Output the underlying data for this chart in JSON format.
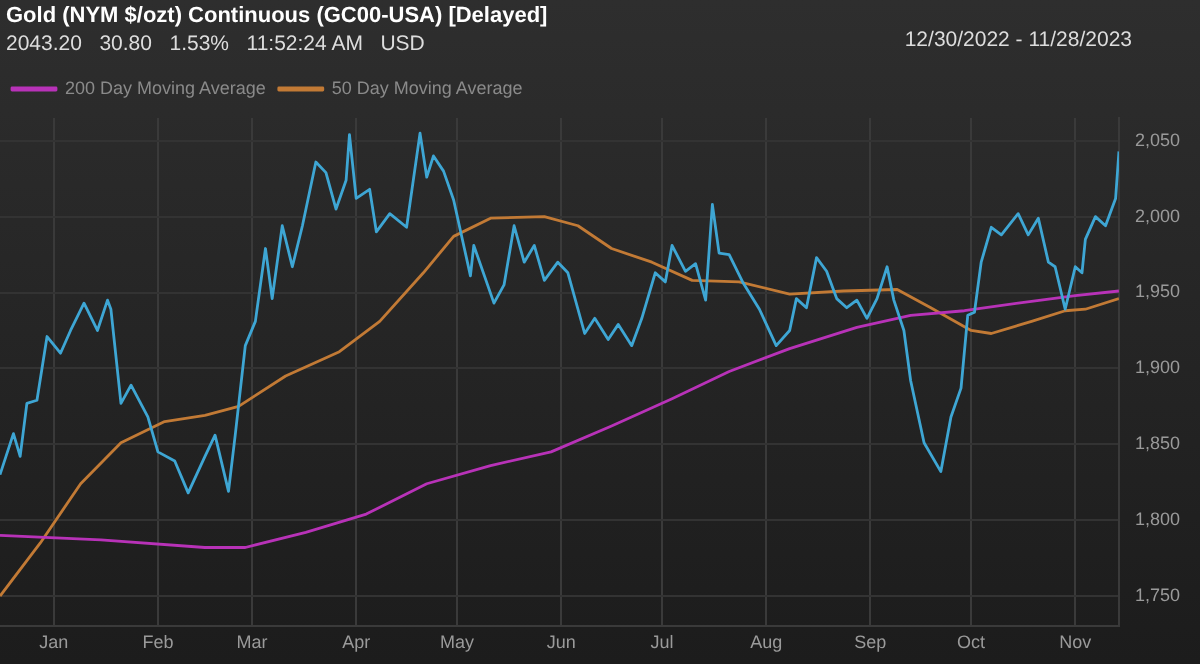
{
  "chart_data": {
    "type": "line",
    "title": "Gold (NYM $/ozt) Continuous (GC00-USA) [Delayed]",
    "subtitle": "2043.20   30.80   1.53%   11:52:24 AM   USD",
    "annotations": [
      "12/30/2022 - 11/28/2023"
    ],
    "legend": "top left",
    "grid": true,
    "marker": "none",
    "line_style": "solid",
    "xlim": [
      "2022-12-30",
      "2023-11-28"
    ],
    "xticks": [
      {
        "value": "2023-01-15",
        "label": "Jan"
      },
      {
        "value": "2023-02-15",
        "label": "Feb"
      },
      {
        "value": "2023-03-15",
        "label": "Mar"
      },
      {
        "value": "2023-04-15",
        "label": "Apr"
      },
      {
        "value": "2023-05-15",
        "label": "May"
      },
      {
        "value": "2023-06-15",
        "label": "Jun"
      },
      {
        "value": "2023-07-15",
        "label": "Jul"
      },
      {
        "value": "2023-08-15",
        "label": "Aug"
      },
      {
        "value": "2023-09-15",
        "label": "Sep"
      },
      {
        "value": "2023-10-15",
        "label": "Oct"
      },
      {
        "value": "2023-11-15",
        "label": "Nov"
      }
    ],
    "ylim": [
      1730,
      2065
    ],
    "yticks": [
      {
        "value": 1750,
        "label": "1,750"
      },
      {
        "value": 1800,
        "label": "1,800"
      },
      {
        "value": 1850,
        "label": "1,850"
      },
      {
        "value": 1900,
        "label": "1,900"
      },
      {
        "value": 1950,
        "label": "1,950"
      },
      {
        "value": 2000,
        "label": "2,000"
      },
      {
        "value": 2050,
        "label": "2,050"
      }
    ],
    "series": [
      {
        "color": "#3ea6d4",
        "x": [
          "2022-12-30",
          "2023-01-03",
          "2023-01-05",
          "2023-01-07",
          "2023-01-10",
          "2023-01-13",
          "2023-01-17",
          "2023-01-20",
          "2023-01-24",
          "2023-01-28",
          "2023-01-31",
          "2023-02-01",
          "2023-02-04",
          "2023-02-07",
          "2023-02-12",
          "2023-02-15",
          "2023-02-20",
          "2023-02-24",
          "2023-03-01",
          "2023-03-04",
          "2023-03-08",
          "2023-03-10",
          "2023-03-13",
          "2023-03-16",
          "2023-03-19",
          "2023-03-21",
          "2023-03-24",
          "2023-03-27",
          "2023-03-30",
          "2023-04-03",
          "2023-04-06",
          "2023-04-09",
          "2023-04-12",
          "2023-04-13",
          "2023-04-15",
          "2023-04-19",
          "2023-04-21",
          "2023-04-25",
          "2023-04-30",
          "2023-05-04",
          "2023-05-06",
          "2023-05-08",
          "2023-05-11",
          "2023-05-14",
          "2023-05-19",
          "2023-05-20",
          "2023-05-26",
          "2023-05-29",
          "2023-06-01",
          "2023-06-04",
          "2023-06-07",
          "2023-06-10",
          "2023-06-14",
          "2023-06-17",
          "2023-06-22",
          "2023-06-25",
          "2023-06-29",
          "2023-07-02",
          "2023-07-06",
          "2023-07-09",
          "2023-07-13",
          "2023-07-16",
          "2023-07-18",
          "2023-07-22",
          "2023-07-25",
          "2023-07-28",
          "2023-07-30",
          "2023-08-01",
          "2023-08-04",
          "2023-08-08",
          "2023-08-13",
          "2023-08-18",
          "2023-08-22",
          "2023-08-24",
          "2023-08-27",
          "2023-08-30",
          "2023-09-02",
          "2023-09-05",
          "2023-09-08",
          "2023-09-11",
          "2023-09-14",
          "2023-09-17",
          "2023-09-20",
          "2023-09-22",
          "2023-09-25",
          "2023-09-27",
          "2023-10-01",
          "2023-10-06",
          "2023-10-09",
          "2023-10-12",
          "2023-10-14",
          "2023-10-16",
          "2023-10-18",
          "2023-10-21",
          "2023-10-24",
          "2023-10-29",
          "2023-11-01",
          "2023-11-04",
          "2023-11-07",
          "2023-11-09",
          "2023-11-12",
          "2023-11-15",
          "2023-11-17",
          "2023-11-18",
          "2023-11-21",
          "2023-11-24",
          "2023-11-27",
          "2023-11-28"
        ],
        "values": [
          1830,
          1857,
          1842,
          1877,
          1879,
          1921,
          1910,
          1925,
          1943,
          1925,
          1945,
          1939,
          1877,
          1889,
          1868,
          1845,
          1839,
          1818,
          1842,
          1856,
          1819,
          1856,
          1915,
          1931,
          1979,
          1946,
          1994,
          1967,
          1994,
          2036,
          2029,
          2005,
          2024,
          2054,
          2012,
          2018,
          1990,
          2002,
          1993,
          2055,
          2026,
          2040,
          2030,
          2011,
          1961,
          1981,
          1943,
          1955,
          1994,
          1970,
          1981,
          1958,
          1970,
          1963,
          1923,
          1933,
          1919,
          1929,
          1915,
          1933,
          1963,
          1957,
          1981,
          1964,
          1969,
          1945,
          2008,
          1976,
          1975,
          1957,
          1939,
          1915,
          1925,
          1946,
          1940,
          1973,
          1964,
          1946,
          1940,
          1945,
          1933,
          1946,
          1967,
          1945,
          1925,
          1892,
          1851,
          1832,
          1868,
          1887,
          1935,
          1937,
          1970,
          1993,
          1988,
          2002,
          1988,
          1999,
          1970,
          1967,
          1939,
          1967,
          1963,
          1985,
          2000,
          1994,
          2012,
          2043
        ]
      },
      {
        "name": "200 Day Moving Average",
        "color": "#b832b8",
        "x": [
          "2022-12-30",
          "2023-01-29",
          "2023-03-01",
          "2023-03-13",
          "2023-03-31",
          "2023-04-18",
          "2023-05-06",
          "2023-05-25",
          "2023-06-12",
          "2023-06-30",
          "2023-07-18",
          "2023-08-04",
          "2023-08-22",
          "2023-09-11",
          "2023-09-27",
          "2023-10-13",
          "2023-10-29",
          "2023-11-15",
          "2023-11-28"
        ],
        "values": [
          1790,
          1787,
          1782,
          1782,
          1792,
          1804,
          1824,
          1836,
          1845,
          1862,
          1880,
          1898,
          1913,
          1927,
          1935,
          1938,
          1943,
          1948,
          1951
        ]
      },
      {
        "name": "50 Day Moving Average",
        "color": "#c27a35",
        "x": [
          "2022-12-30",
          "2023-01-11",
          "2023-01-23",
          "2023-02-04",
          "2023-02-17",
          "2023-03-01",
          "2023-03-11",
          "2023-03-25",
          "2023-04-10",
          "2023-04-22",
          "2023-05-05",
          "2023-05-14",
          "2023-05-25",
          "2023-06-10",
          "2023-06-20",
          "2023-06-30",
          "2023-07-12",
          "2023-07-24",
          "2023-08-07",
          "2023-08-22",
          "2023-09-07",
          "2023-09-23",
          "2023-10-03",
          "2023-10-15",
          "2023-10-21",
          "2023-11-02",
          "2023-11-12",
          "2023-11-18",
          "2023-11-28"
        ],
        "values": [
          1750,
          1785,
          1824,
          1851,
          1865,
          1869,
          1875,
          1895,
          1911,
          1931,
          1963,
          1987,
          1999,
          2000,
          1994,
          1979,
          1970,
          1958,
          1957,
          1949,
          1951,
          1952,
          1940,
          1925,
          1923,
          1931,
          1938,
          1939,
          1946
        ]
      }
    ]
  }
}
